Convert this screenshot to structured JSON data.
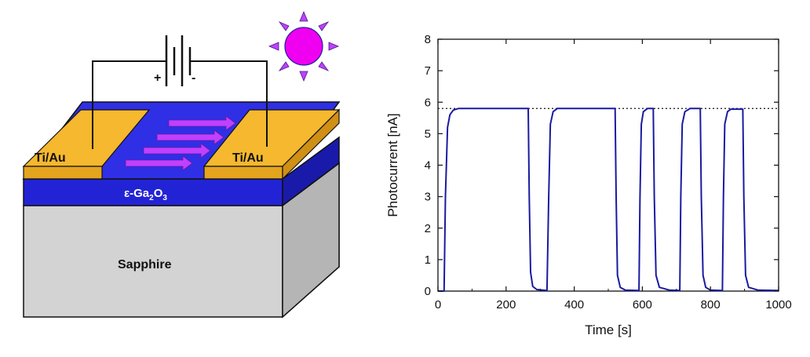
{
  "device": {
    "left_contact_label": "Ti/Au",
    "right_contact_label": "Ti/Au",
    "film_label_prefix": "ε-Ga",
    "film_label_sub1": "2",
    "film_label_mid": "O",
    "film_label_sub2": "3",
    "substrate_label": "Sapphire",
    "battery_plus": "+",
    "battery_minus": "-",
    "colors": {
      "contact": "#f5b82e",
      "film": "#2323d6",
      "substrate": "#d3d3d3",
      "arrow": "#c040ff",
      "sun": "#f000f0",
      "sun_rays": "#c040ff"
    }
  },
  "chart_data": {
    "type": "line",
    "xlabel": "Time [s]",
    "ylabel": "Photocurrent [nA]",
    "xlim": [
      0,
      1000
    ],
    "ylim": [
      0,
      8
    ],
    "xticks": [
      0,
      200,
      400,
      600,
      800,
      1000
    ],
    "yticks": [
      0,
      1,
      2,
      3,
      4,
      5,
      6,
      7,
      8
    ],
    "reference_line": {
      "y": 5.8,
      "style": "dotted"
    },
    "series": [
      {
        "color": "#1a1aa0",
        "x": [
          0,
          18,
          22,
          28,
          35,
          45,
          60,
          100,
          200,
          265,
          268,
          272,
          278,
          290,
          320,
          325,
          330,
          338,
          350,
          400,
          520,
          523,
          527,
          535,
          550,
          590,
          593,
          597,
          603,
          615,
          632,
          635,
          640,
          650,
          680,
          710,
          713,
          717,
          725,
          740,
          770,
          773,
          778,
          786,
          800,
          835,
          838,
          842,
          850,
          860,
          895,
          898,
          903,
          912,
          940,
          1000
        ],
        "y": [
          0,
          0,
          3.0,
          5.2,
          5.6,
          5.75,
          5.8,
          5.8,
          5.8,
          5.8,
          3.0,
          0.6,
          0.15,
          0.05,
          0.02,
          3.0,
          5.3,
          5.7,
          5.8,
          5.8,
          5.8,
          3.0,
          0.5,
          0.12,
          0.03,
          0.02,
          3.0,
          5.3,
          5.7,
          5.8,
          5.8,
          3.0,
          0.5,
          0.12,
          0.03,
          0.02,
          3.0,
          5.3,
          5.7,
          5.8,
          5.8,
          3.0,
          0.5,
          0.12,
          0.03,
          0.02,
          3.0,
          5.3,
          5.7,
          5.78,
          5.78,
          3.0,
          0.5,
          0.12,
          0.03,
          0.02
        ]
      }
    ]
  }
}
